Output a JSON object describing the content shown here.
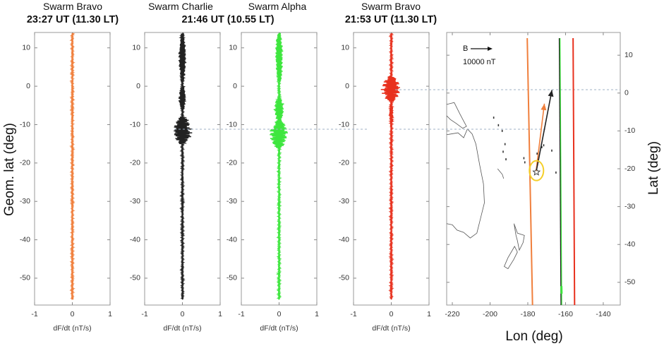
{
  "titles": {
    "p1_sat": "Swarm Bravo",
    "p1_time": "23:27 UT (11.30 LT)",
    "p2_sat": "Swarm Charlie",
    "p3_sat": "Swarm Alpha",
    "p23_time": "21:46 UT (10.55 LT)",
    "p4_sat": "Swarm Bravo",
    "p4_time": "21:53 UT (11.30 LT)"
  },
  "axis_labels": {
    "y_left": "Geom. lat (deg)",
    "x_panels": "dF/dt (nT/s)",
    "x_map": "Lon (deg)",
    "y_right": "Lat (deg)"
  },
  "legend": {
    "vector_name": "B",
    "vector_scale": "10000 nT"
  },
  "colors": {
    "bravo_late": "#f07f3c",
    "charlie": "#222222",
    "alpha": "#3ee63e",
    "bravo_early": "#e8311e",
    "grid_dashed": "#9fb0c4",
    "volcano_marker": "#f5cf2a"
  },
  "chart_data": [
    {
      "type": "line",
      "title": "23:27 UT (11.30 LT)",
      "series": [
        {
          "name": "Swarm Bravo",
          "color": "#f07f3c"
        }
      ],
      "xlabel": "dF/dt (nT/s)",
      "ylabel": "Geom. lat (deg)",
      "xlim": [
        -1,
        1
      ],
      "ylim": [
        -57,
        14
      ],
      "xticks": [
        -1,
        0,
        1
      ],
      "yticks": [
        10,
        0,
        -10,
        -20,
        -30,
        -40,
        -50
      ],
      "disturbance": []
    },
    {
      "type": "line",
      "title": "21:46 UT (10.55 LT)",
      "series": [
        {
          "name": "Swarm Charlie",
          "color": "#222222"
        }
      ],
      "xlabel": "dF/dt (nT/s)",
      "xlim": [
        -1,
        1
      ],
      "ylim": [
        -57,
        14
      ],
      "xticks": [
        -1,
        0,
        1
      ],
      "yticks": [
        10,
        0,
        -10,
        -20,
        -30,
        -40,
        -50
      ],
      "disturbance": [
        {
          "lat_from": -15,
          "lat_to": -8,
          "amplitude": 0.28
        },
        {
          "lat_from": -6,
          "lat_to": 0,
          "amplitude": 0.12
        },
        {
          "lat_from": 1,
          "lat_to": 14,
          "amplitude": 0.11
        }
      ]
    },
    {
      "type": "line",
      "series": [
        {
          "name": "Swarm Alpha",
          "color": "#3ee63e"
        }
      ],
      "xlabel": "dF/dt (nT/s)",
      "xlim": [
        -1,
        1
      ],
      "ylim": [
        -57,
        14
      ],
      "xticks": [
        -1,
        0,
        1
      ],
      "yticks": [
        10,
        0,
        -10,
        -20,
        -30,
        -40,
        -50
      ],
      "disturbance": [
        {
          "lat_from": -16,
          "lat_to": -9,
          "amplitude": 0.28
        },
        {
          "lat_from": -9,
          "lat_to": -3,
          "amplitude": 0.16
        },
        {
          "lat_from": 1,
          "lat_to": 14,
          "amplitude": 0.12
        }
      ]
    },
    {
      "type": "line",
      "title": "21:53 UT (11.30 LT)",
      "series": [
        {
          "name": "Swarm Bravo",
          "color": "#e8311e"
        }
      ],
      "xlabel": "dF/dt (nT/s)",
      "xlim": [
        -1,
        1
      ],
      "ylim": [
        -57,
        14
      ],
      "xticks": [
        -1,
        0,
        1
      ],
      "yticks": [
        10,
        0,
        -10,
        -20,
        -30,
        -40,
        -50
      ],
      "disturbance": [
        {
          "lat_from": -4,
          "lat_to": 2.5,
          "amplitude": 0.28
        },
        {
          "lat_from": -10,
          "lat_to": -4,
          "amplitude": 0.06
        }
      ]
    },
    {
      "type": "map",
      "xlabel": "Lon (deg)",
      "ylabel": "Lat (deg)",
      "xlim": [
        -223,
        -131
      ],
      "ylim": [
        -56,
        16
      ],
      "xticks": [
        -220,
        -200,
        -180,
        -160,
        -140
      ],
      "yticks": [
        10,
        0,
        -10,
        -20,
        -30,
        -40,
        -50
      ],
      "tracks": [
        {
          "satellite": "Swarm Bravo (23:27 UT)",
          "color": "#f07f3c",
          "points": [
            [
              -180.3,
              14.5
            ],
            [
              -177.5,
              -56
            ]
          ]
        },
        {
          "satellite": "Swarm Charlie (21:46 UT)",
          "color": "#222222",
          "points": [
            [
              -163.2,
              14.5
            ],
            [
              -162.3,
              -56
            ]
          ]
        },
        {
          "satellite": "Swarm Alpha (21:46 UT)",
          "color": "#3ee63e",
          "points": [
            [
              -162.9,
              14.5
            ],
            [
              -162.0,
              -56
            ]
          ]
        },
        {
          "satellite": "Swarm Bravo (21:53 UT)",
          "color": "#e8311e",
          "points": [
            [
              -156.0,
              14.5
            ],
            [
              -155.2,
              -56
            ]
          ]
        }
      ],
      "volcano": {
        "lon": -175.4,
        "lat": -20.5
      },
      "vectors": [
        {
          "color": "#f07f3c",
          "from": [
            -175.6,
            -20.6
          ],
          "to": [
            -171.2,
            -2.8
          ]
        },
        {
          "color": "#222222",
          "from": [
            -175.4,
            -20.4
          ],
          "to": [
            -167.2,
            0.8
          ]
        }
      ],
      "dashed_lats": [
        -1.2,
        -10.5
      ]
    }
  ]
}
